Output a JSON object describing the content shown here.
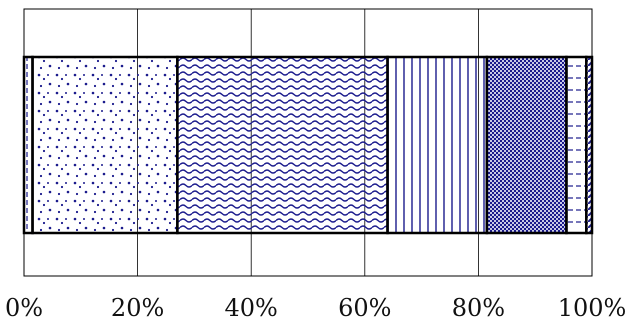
{
  "chart_data": {
    "type": "bar",
    "orientation": "horizontal",
    "stacked": true,
    "normalized": true,
    "title": "",
    "xlabel": "",
    "ylabel": "",
    "xlim": [
      0,
      100
    ],
    "x_ticks": [
      "0%",
      "20%",
      "40%",
      "60%",
      "80%",
      "100%"
    ],
    "x_tick_values": [
      0,
      20,
      40,
      60,
      80,
      100
    ],
    "grid": true,
    "legend": "none",
    "segment_color": "#1a1a8c",
    "segments": [
      {
        "value": 1.5,
        "pattern": "dashed-vertical"
      },
      {
        "value": 25.5,
        "pattern": "dots"
      },
      {
        "value": 37.0,
        "pattern": "waves"
      },
      {
        "value": 17.5,
        "pattern": "vertical-lines"
      },
      {
        "value": 14.0,
        "pattern": "checker"
      },
      {
        "value": 3.5,
        "pattern": "dashed-horizontal"
      },
      {
        "value": 1.0,
        "pattern": "diagonal-stripes"
      }
    ]
  }
}
